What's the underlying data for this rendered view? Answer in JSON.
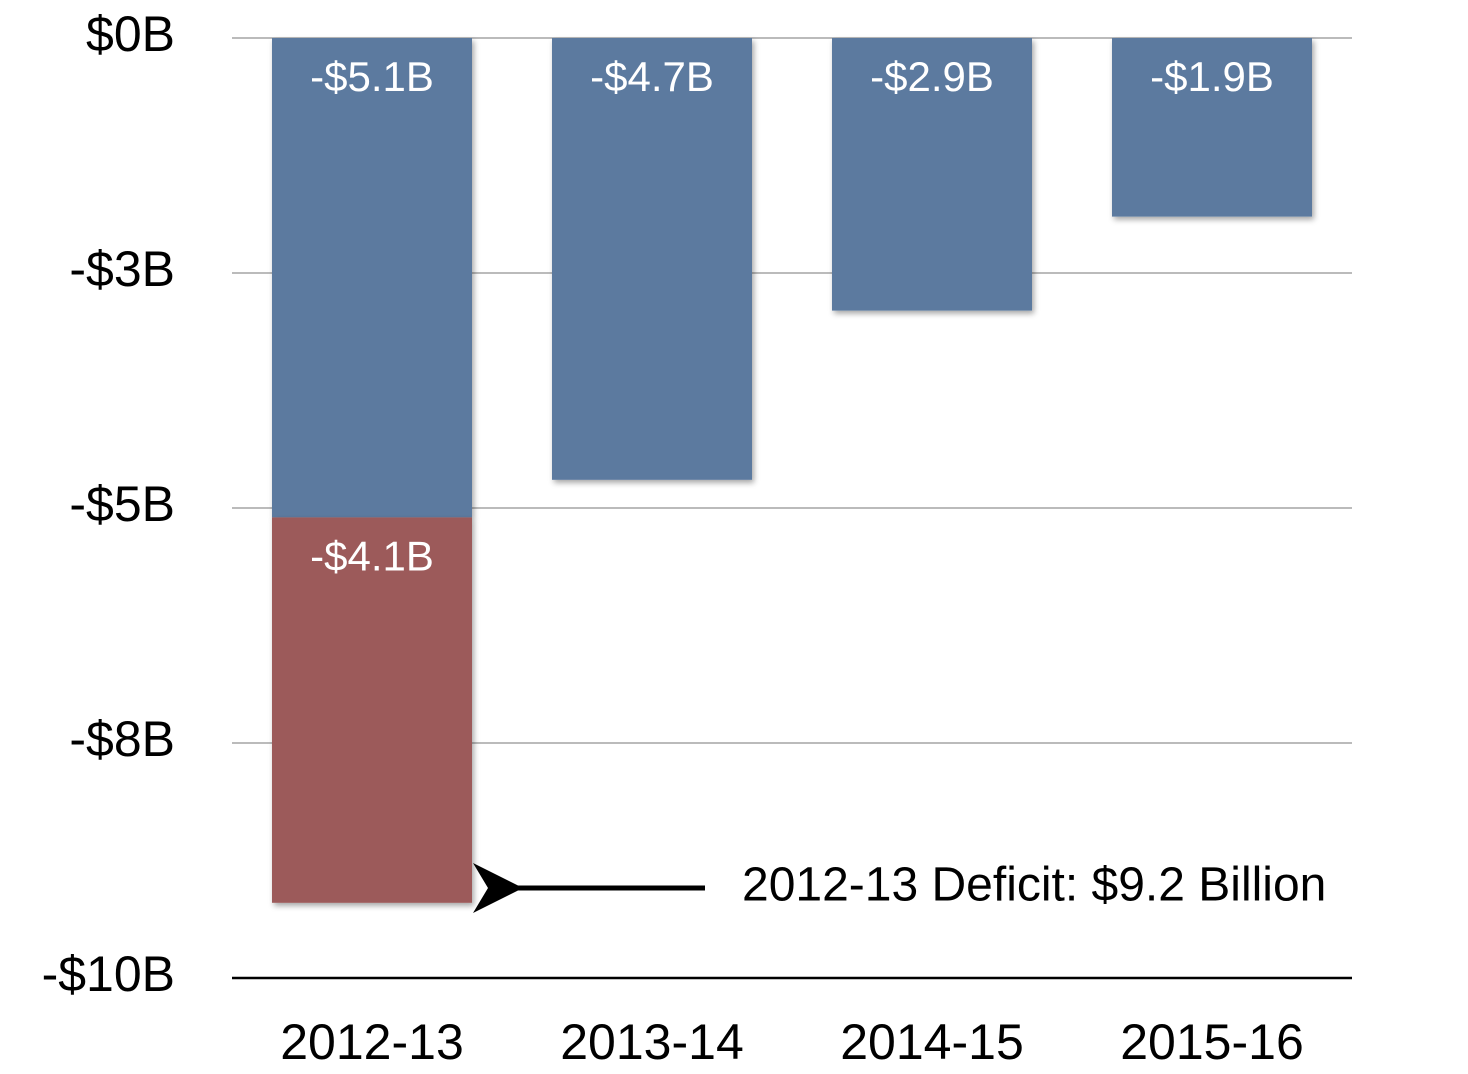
{
  "chart_data": {
    "type": "bar",
    "stacked": true,
    "categories": [
      "2012-13",
      "2013-14",
      "2014-15",
      "2015-16"
    ],
    "series": [
      {
        "color": "#5b7a9f",
        "values": [
          -5.1,
          -4.7,
          -2.9,
          -1.9
        ],
        "value_labels": [
          "-$5.1B",
          "-$4.7B",
          "-$2.9B",
          "-$1.9B"
        ]
      },
      {
        "color": "#9c5a5a",
        "values": [
          -4.1,
          null,
          null,
          null
        ],
        "value_labels": [
          "-$4.1B",
          null,
          null,
          null
        ]
      }
    ],
    "ylim": [
      -10,
      0
    ],
    "yticks": [
      {
        "value": 0,
        "label": "$0B"
      },
      {
        "value": -2.5,
        "label": "-$3B"
      },
      {
        "value": -5,
        "label": "-$5B"
      },
      {
        "value": -7.5,
        "label": "-$8B"
      },
      {
        "value": -10,
        "label": "-$10B"
      }
    ],
    "grid": true,
    "annotation": "2012-13 Deficit: $9.2 Billion"
  }
}
